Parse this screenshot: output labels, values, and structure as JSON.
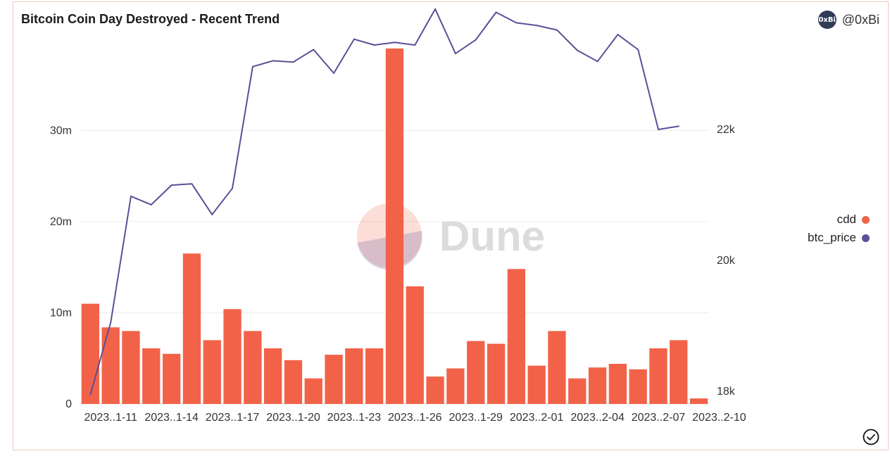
{
  "header": {
    "title": "Bitcoin Coin Day Destroyed - Recent Trend",
    "avatar_text": "0xBi",
    "handle": "@0xBi"
  },
  "watermark": {
    "text": "Dune"
  },
  "legend": [
    {
      "label": "cdd",
      "color": "#f26249"
    },
    {
      "label": "btc_price",
      "color": "#5b4f96"
    }
  ],
  "chart_data": {
    "type": "bar",
    "x_tick_labels": [
      "2023..1-11",
      "2023..1-14",
      "2023..1-17",
      "2023..1-20",
      "2023..1-23",
      "2023..1-26",
      "2023..1-29",
      "2023..2-01",
      "2023..2-04",
      "2023..2-07",
      "2023..2-10"
    ],
    "left_axis": {
      "ticks": [
        0,
        10000000,
        20000000,
        30000000
      ],
      "tick_labels": [
        "0",
        "10m",
        "20m",
        "30m"
      ],
      "range": [
        0,
        40000000
      ]
    },
    "right_axis": {
      "ticks": [
        18000,
        20000,
        22000
      ],
      "tick_labels": [
        "18k",
        "20k",
        "22k"
      ],
      "range": [
        17800,
        23800
      ]
    },
    "grid": true,
    "legend_position": "right",
    "series": [
      {
        "name": "cdd",
        "kind": "bar",
        "axis": "left",
        "color": "#f26249",
        "values": [
          11000000,
          8400000,
          8000000,
          6100000,
          5500000,
          16500000,
          7000000,
          10400000,
          8000000,
          6100000,
          4800000,
          2800000,
          5400000,
          6100000,
          6100000,
          39000000,
          12900000,
          3000000,
          3900000,
          6900000,
          6600000,
          14800000,
          4200000,
          8000000,
          2800000,
          4000000,
          4400000,
          3800000,
          6100000,
          7000000,
          600000
        ]
      },
      {
        "name": "btc_price",
        "kind": "line",
        "axis": "right",
        "color": "#5b4f96",
        "values": [
          17950,
          19050,
          20980,
          20850,
          21150,
          21170,
          20700,
          21100,
          22960,
          23050,
          23030,
          23220,
          22860,
          23380,
          23290,
          23330,
          23290,
          23840,
          23160,
          23370,
          23790,
          23630,
          23590,
          23520,
          23210,
          23040,
          23450,
          23220,
          22000,
          22050
        ]
      }
    ]
  }
}
